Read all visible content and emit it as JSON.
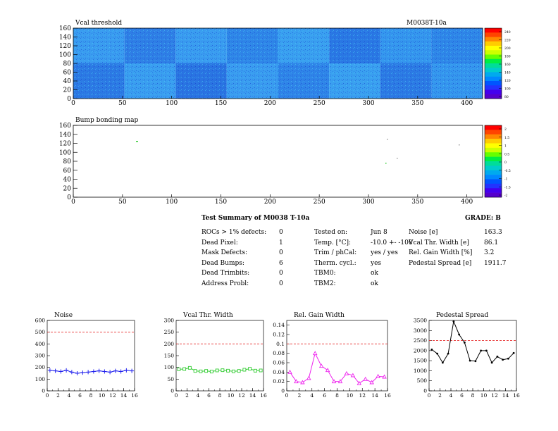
{
  "colors": {
    "blue_series": "#2222ee",
    "green_series": "#33cc33",
    "magenta_series": "#ee22ee",
    "black_series": "#000000",
    "threshold_line": "#e83030"
  },
  "maps": {
    "vcal": {
      "title": "Vcal threshold",
      "module": "M0038T-10a",
      "x_ticks": [
        "0",
        "50",
        "100",
        "150",
        "200",
        "250",
        "300",
        "350",
        "400"
      ],
      "y_ticks": [
        "0",
        "20",
        "40",
        "60",
        "80",
        "100",
        "120",
        "140",
        "160"
      ],
      "palette_labels": [
        "240",
        "220",
        "200",
        "180",
        "160",
        "140",
        "120",
        "100",
        "80"
      ]
    },
    "bump": {
      "title": "Bump bonding map",
      "x_ticks": [
        "0",
        "50",
        "100",
        "150",
        "200",
        "250",
        "300",
        "350",
        "400"
      ],
      "y_ticks": [
        "0",
        "20",
        "40",
        "60",
        "80",
        "100",
        "120",
        "140",
        "160"
      ],
      "palette_labels": [
        "2",
        "1.5",
        "1",
        "0.5",
        "0",
        "-0.5",
        "-1",
        "-1.5",
        "-2"
      ]
    }
  },
  "summary": {
    "title": "Test Summary of M0038",
    "subtitle": "T-10a",
    "grade": "GRADE:  B",
    "col1": [
      {
        "label": "ROCs > 1% defects:",
        "value": "0"
      },
      {
        "label": "Dead Pixel:",
        "value": "1"
      },
      {
        "label": "Mask Defects:",
        "value": "0"
      },
      {
        "label": "Dead Bumps:",
        "value": "6"
      },
      {
        "label": "Dead Trimbits:",
        "value": "0"
      },
      {
        "label": "Address Probl:",
        "value": "0"
      }
    ],
    "col2": [
      {
        "label": "Tested on:",
        "value": "Jun 8"
      },
      {
        "label": "Temp. [°C]:",
        "value": "-10.0 +- -100"
      },
      {
        "label": "Trim / phCal:",
        "value": "yes / yes"
      },
      {
        "label": "Therm. cycl.:",
        "value": "yes"
      },
      {
        "label": "TBM0:",
        "value": "ok"
      },
      {
        "label": "TBM2:",
        "value": "ok"
      }
    ],
    "col3": [
      {
        "label": "Noise [e]",
        "value": "163.3"
      },
      {
        "label": "Vcal Thr. Width [e]",
        "value": "86.1"
      },
      {
        "label": "Rel. Gain Width [%]",
        "value": "3.2"
      },
      {
        "label": "Pedestal Spread [e]",
        "value": "1911.7"
      }
    ]
  },
  "chart_data": [
    {
      "type": "line",
      "title": "Noise",
      "x": [
        0,
        1,
        2,
        3,
        4,
        5,
        6,
        7,
        8,
        9,
        10,
        11,
        12,
        13,
        14,
        15
      ],
      "series": [
        {
          "values": [
            175,
            170,
            165,
            175,
            160,
            150,
            155,
            160,
            165,
            170,
            165,
            160,
            170,
            165,
            175,
            170
          ]
        }
      ],
      "threshold": 500,
      "xlim": [
        0,
        16
      ],
      "ylim": [
        0,
        600
      ],
      "x_ticks": [
        "0",
        "2",
        "4",
        "6",
        "8",
        "10",
        "12",
        "14",
        "16"
      ],
      "y_ticks": [
        "0",
        "100",
        "200",
        "300",
        "400",
        "500",
        "600"
      ],
      "color": "#2222ee",
      "marker": "cross"
    },
    {
      "type": "line",
      "title": "Vcal Thr. Width",
      "x": [
        0,
        1,
        2,
        3,
        4,
        5,
        6,
        7,
        8,
        9,
        10,
        11,
        12,
        13,
        14,
        15
      ],
      "series": [
        {
          "values": [
            92,
            93,
            98,
            85,
            83,
            85,
            82,
            87,
            88,
            86,
            83,
            85,
            90,
            94,
            86,
            87
          ]
        }
      ],
      "threshold": 200,
      "xlim": [
        0,
        16
      ],
      "ylim": [
        0,
        300
      ],
      "x_ticks": [
        "0",
        "2",
        "4",
        "6",
        "8",
        "10",
        "12",
        "14",
        "16"
      ],
      "y_ticks": [
        "0",
        "50",
        "100",
        "150",
        "200",
        "250",
        "300"
      ],
      "color": "#33cc33",
      "marker": "square"
    },
    {
      "type": "line",
      "title": "Rel. Gain Width",
      "x": [
        0,
        1,
        2,
        3,
        4,
        5,
        6,
        7,
        8,
        9,
        10,
        11,
        12,
        13,
        14,
        15
      ],
      "series": [
        {
          "values": [
            0.04,
            0.02,
            0.018,
            0.027,
            0.08,
            0.053,
            0.044,
            0.02,
            0.02,
            0.037,
            0.033,
            0.016,
            0.025,
            0.018,
            0.031,
            0.03
          ]
        }
      ],
      "threshold": 0.1,
      "xlim": [
        0,
        16
      ],
      "ylim": [
        0,
        0.15
      ],
      "x_ticks": [
        "0",
        "2",
        "4",
        "6",
        "8",
        "10",
        "12",
        "14",
        "16"
      ],
      "y_ticks": [
        "0",
        "0.02",
        "0.04",
        "0.06",
        "0.08",
        "0.1",
        "0.12",
        "0.14"
      ],
      "y_tick_values": [
        0,
        0.02,
        0.04,
        0.06,
        0.08,
        0.1,
        0.12,
        0.14
      ],
      "color": "#ee22ee",
      "marker": "triangle"
    },
    {
      "type": "line",
      "title": "Pedestal Spread",
      "x": [
        0,
        1,
        2,
        3,
        4,
        5,
        6,
        7,
        8,
        9,
        10,
        11,
        12,
        13,
        14,
        15
      ],
      "series": [
        {
          "values": [
            2050,
            1850,
            1400,
            1850,
            3450,
            2800,
            2400,
            1500,
            1480,
            2000,
            2000,
            1400,
            1700,
            1550,
            1600,
            1880
          ]
        }
      ],
      "threshold": 2500,
      "xlim": [
        0,
        16
      ],
      "ylim": [
        0,
        3500
      ],
      "x_ticks": [
        "0",
        "2",
        "4",
        "6",
        "8",
        "10",
        "12",
        "14",
        "16"
      ],
      "y_ticks": [
        "0",
        "500",
        "1000",
        "1500",
        "2000",
        "2500",
        "3000",
        "3500"
      ],
      "color": "#000000",
      "marker": "dot"
    }
  ]
}
